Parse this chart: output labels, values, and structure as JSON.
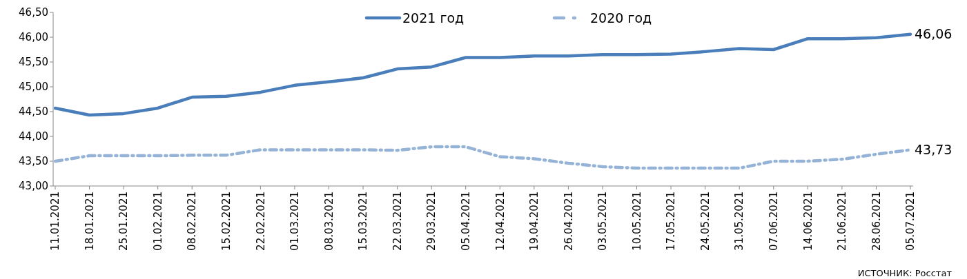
{
  "chart_data": {
    "type": "line",
    "categories": [
      "11.01.2021",
      "18.01.2021",
      "25.01.2021",
      "01.02.2021",
      "08.02.2021",
      "15.02.2021",
      "22.02.2021",
      "01.03.2021",
      "08.03.2021",
      "15.03.2021",
      "22.03.2021",
      "29.03.2021",
      "05.04.2021",
      "12.04.2021",
      "19.04.2021",
      "26.04.2021",
      "03.05.2021",
      "10.05.2021",
      "17.05.2021",
      "24.05.2021",
      "31.05.2021",
      "07.06.2021",
      "14.06.2021",
      "21.06.2021",
      "28.06.2021",
      "05.07.2021"
    ],
    "series": [
      {
        "name": "2021 год",
        "color": "#4a7ebb",
        "line_style": "solid",
        "values": [
          44.57,
          44.43,
          44.46,
          44.57,
          44.79,
          44.81,
          44.89,
          45.03,
          45.1,
          45.18,
          45.36,
          45.4,
          45.59,
          45.59,
          45.62,
          45.62,
          45.65,
          45.65,
          45.66,
          45.71,
          45.77,
          45.75,
          45.97,
          45.97,
          45.99,
          46.06
        ],
        "value_labels": [
          null,
          null,
          null,
          null,
          null,
          null,
          null,
          null,
          null,
          null,
          null,
          null,
          null,
          null,
          null,
          null,
          null,
          null,
          null,
          null,
          null,
          null,
          null,
          null,
          null,
          "46,06"
        ]
      },
      {
        "name": "2020 год",
        "color": "#95b3d7",
        "line_style": "dashed",
        "values": [
          43.5,
          43.61,
          43.61,
          43.61,
          43.62,
          43.62,
          43.73,
          43.73,
          43.73,
          43.73,
          43.72,
          43.79,
          43.79,
          43.59,
          43.55,
          43.46,
          43.39,
          43.36,
          43.36,
          43.36,
          43.36,
          43.5,
          43.5,
          43.54,
          43.64,
          43.73
        ],
        "value_labels": [
          null,
          null,
          null,
          null,
          null,
          null,
          null,
          null,
          null,
          null,
          null,
          null,
          null,
          null,
          null,
          null,
          null,
          null,
          null,
          null,
          null,
          null,
          null,
          null,
          null,
          "43,73"
        ]
      }
    ],
    "ylim": [
      43,
      46.5
    ],
    "yticks": [
      {
        "value": 43,
        "label": "43,00"
      },
      {
        "value": 43.5,
        "label": "43,50"
      },
      {
        "value": 44,
        "label": "44,00"
      },
      {
        "value": 44.5,
        "label": "44,50"
      },
      {
        "value": 45,
        "label": "45,00"
      },
      {
        "value": 45.5,
        "label": "45,50"
      },
      {
        "value": 46,
        "label": "46,00"
      },
      {
        "value": 46.5,
        "label": "46,50"
      }
    ],
    "grid": false,
    "legend": "top",
    "marker": "none",
    "annotations": [
      "ИСТОЧНИК: Росстат"
    ]
  }
}
